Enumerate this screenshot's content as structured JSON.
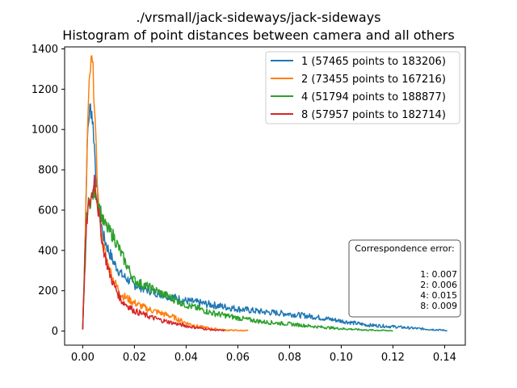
{
  "chart_data": {
    "type": "line",
    "title": "./vrsmall/jack-sideways/jack-sideways",
    "subtitle": "Histogram of point distances between camera and all others",
    "xlabel": "",
    "ylabel": "",
    "xlim": [
      -0.007,
      0.148
    ],
    "ylim": [
      -70,
      1410
    ],
    "x_ticks": [
      0.0,
      0.02,
      0.04,
      0.06,
      0.08,
      0.1,
      0.12,
      0.14
    ],
    "x_tick_labels": [
      "0.00",
      "0.02",
      "0.04",
      "0.06",
      "0.08",
      "0.10",
      "0.12",
      "0.14"
    ],
    "y_ticks": [
      0,
      200,
      400,
      600,
      800,
      1000,
      1200,
      1400
    ],
    "y_tick_labels": [
      "0",
      "200",
      "400",
      "600",
      "800",
      "1000",
      "1200",
      "1400"
    ],
    "grid": false,
    "legend_position": "top-right",
    "series": [
      {
        "name": "1 (57465 points to 183206)",
        "color": "#1f77b4",
        "x": [
          0.0,
          0.001,
          0.0015,
          0.002,
          0.0025,
          0.003,
          0.0035,
          0.004,
          0.0045,
          0.005,
          0.006,
          0.007,
          0.008,
          0.01,
          0.012,
          0.015,
          0.02,
          0.025,
          0.03,
          0.04,
          0.05,
          0.06,
          0.07,
          0.08,
          0.09,
          0.1,
          0.11,
          0.12,
          0.13,
          0.135,
          0.141
        ],
        "y": [
          10,
          480,
          800,
          1000,
          1080,
          1110,
          1090,
          1020,
          920,
          800,
          620,
          540,
          470,
          400,
          340,
          280,
          230,
          205,
          185,
          150,
          130,
          110,
          95,
          85,
          70,
          50,
          30,
          22,
          12,
          8,
          3
        ]
      },
      {
        "name": "2 (73455 points to 167216)",
        "color": "#ff7f0e",
        "x": [
          0.0,
          0.001,
          0.0015,
          0.002,
          0.0025,
          0.003,
          0.0035,
          0.004,
          0.0045,
          0.005,
          0.0055,
          0.006,
          0.007,
          0.008,
          0.01,
          0.012,
          0.015,
          0.02,
          0.025,
          0.03,
          0.035,
          0.04,
          0.045,
          0.05,
          0.055,
          0.06,
          0.064
        ],
        "y": [
          10,
          450,
          800,
          1050,
          1200,
          1300,
          1340,
          1280,
          1150,
          950,
          800,
          650,
          500,
          420,
          320,
          250,
          180,
          140,
          110,
          90,
          70,
          40,
          22,
          12,
          5,
          3,
          2
        ]
      },
      {
        "name": "4 (51794 points to 188877)",
        "color": "#2ca02c",
        "x": [
          0.0,
          0.001,
          0.0015,
          0.002,
          0.003,
          0.004,
          0.005,
          0.006,
          0.007,
          0.008,
          0.01,
          0.012,
          0.015,
          0.02,
          0.025,
          0.03,
          0.04,
          0.05,
          0.06,
          0.07,
          0.08,
          0.09,
          0.1,
          0.11,
          0.12
        ],
        "y": [
          10,
          350,
          550,
          620,
          650,
          680,
          690,
          640,
          590,
          540,
          500,
          470,
          380,
          250,
          220,
          190,
          130,
          90,
          65,
          45,
          35,
          22,
          12,
          5,
          2
        ]
      },
      {
        "name": "8 (57957 points to 182714)",
        "color": "#d62728",
        "x": [
          0.0,
          0.001,
          0.0015,
          0.002,
          0.003,
          0.004,
          0.0045,
          0.005,
          0.006,
          0.007,
          0.008,
          0.01,
          0.012,
          0.015,
          0.02,
          0.025,
          0.03,
          0.035,
          0.04,
          0.045,
          0.05,
          0.055
        ],
        "y": [
          10,
          420,
          520,
          600,
          650,
          700,
          760,
          720,
          600,
          500,
          410,
          300,
          230,
          150,
          100,
          75,
          55,
          40,
          25,
          15,
          6,
          2
        ]
      }
    ],
    "annotation": {
      "title": "Correspondence error:",
      "lines": [
        "1: 0.007",
        "2: 0.006",
        "4: 0.015",
        "8: 0.009"
      ]
    }
  }
}
